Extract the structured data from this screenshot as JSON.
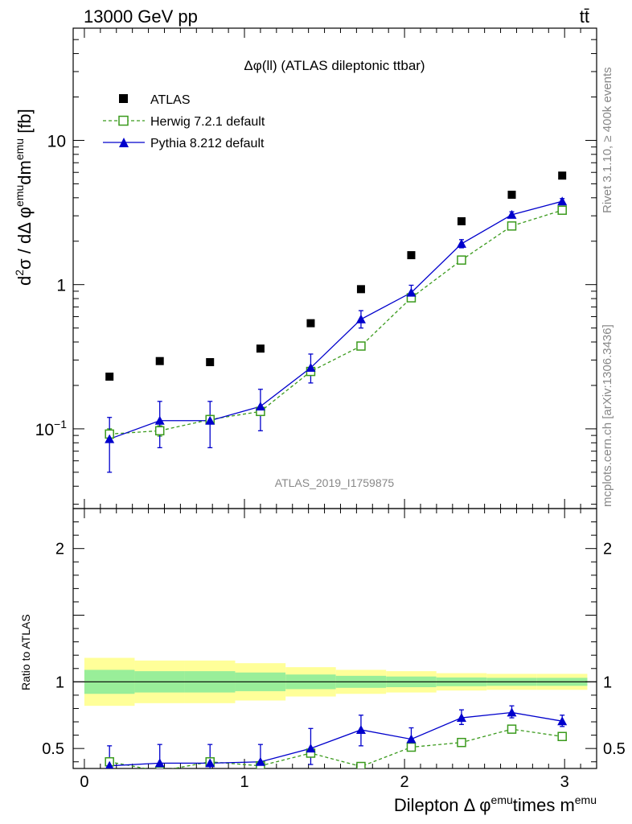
{
  "header": {
    "energy_label": "13000 GeV pp",
    "process_label": "tt̄"
  },
  "side_notes": {
    "rivet": "Rivet 3.1.10, ≥ 400k events",
    "mcplots": "mcplots.cern.ch [arXiv:1306.3436]"
  },
  "chart_data": [
    {
      "type": "scatter",
      "panel": "main",
      "title": "Δφ(ll) (ATLAS dileptonic ttbar)",
      "ylabel_parts": {
        "d": "d",
        "sq": "2",
        "sigma": "σ / dΔ φ",
        "emu1": "emu",
        "dm": "dm",
        "emu2": "emu",
        "unit": " [fb]"
      },
      "xlabel_parts": {
        "main": "Dilepton Δ φ",
        "emu1": "emu",
        "times": "times m",
        "emu2": "emu"
      },
      "yscale": "log",
      "ylim": [
        0.028,
        60
      ],
      "xlim": [
        -0.07,
        3.2
      ],
      "watermark": "ATLAS_2019_I1759875",
      "x_ticks": [
        0,
        1,
        2,
        3
      ],
      "y_ticks": [
        {
          "value": 0.1,
          "base": "10",
          "exp": "−1"
        },
        {
          "value": 1,
          "base": "1",
          "exp": ""
        },
        {
          "value": 10,
          "base": "10",
          "exp": ""
        }
      ],
      "legend": [
        {
          "name": "ATLAS",
          "marker": "square-filled",
          "color": "#000000"
        },
        {
          "name": "Herwig 7.2.1 default",
          "marker": "square-open",
          "color": "#3a9a1c"
        },
        {
          "name": "Pythia 8.212 default",
          "marker": "triangle",
          "color": "#0000cc"
        }
      ],
      "x": [
        0.157,
        0.471,
        0.785,
        1.1,
        1.414,
        1.728,
        2.042,
        2.356,
        2.67,
        2.985
      ],
      "series": [
        {
          "name": "ATLAS",
          "values": [
            0.23,
            0.295,
            0.29,
            0.36,
            0.54,
            0.93,
            1.6,
            2.75,
            4.2,
            5.7
          ]
        },
        {
          "name": "Herwig 7.2.1 default",
          "values": [
            0.092,
            0.097,
            0.116,
            0.132,
            0.25,
            0.375,
            0.81,
            1.48,
            2.55,
            3.28
          ],
          "err_low": [
            0.083,
            0.089,
            0.108,
            0.125,
            0.24,
            0.36,
            0.79,
            1.44,
            2.49,
            3.2
          ],
          "err_high": [
            0.1,
            0.105,
            0.124,
            0.139,
            0.26,
            0.39,
            0.83,
            1.52,
            2.61,
            3.36
          ]
        },
        {
          "name": "Pythia 8.212 default",
          "values": [
            0.085,
            0.114,
            0.114,
            0.143,
            0.265,
            0.575,
            0.88,
            1.92,
            3.05,
            3.78
          ],
          "err_low": [
            0.05,
            0.074,
            0.074,
            0.097,
            0.208,
            0.5,
            0.8,
            1.8,
            2.9,
            3.62
          ],
          "err_high": [
            0.12,
            0.155,
            0.155,
            0.188,
            0.33,
            0.66,
            0.99,
            2.05,
            3.2,
            3.95
          ]
        }
      ]
    },
    {
      "type": "scatter",
      "panel": "ratio",
      "ylabel": "Ratio to ATLAS",
      "ylim": [
        0.35,
        2.3
      ],
      "y_ticks": [
        {
          "value": 0.5,
          "label": "0.5"
        },
        {
          "value": 1,
          "label": "1"
        },
        {
          "value": 2,
          "label": "2"
        }
      ],
      "bin_edges": [
        0,
        0.314,
        0.628,
        0.942,
        1.257,
        1.571,
        1.885,
        2.199,
        2.513,
        2.827,
        3.142
      ],
      "band_yellow": [
        [
          0.82,
          1.18
        ],
        [
          0.84,
          1.16
        ],
        [
          0.84,
          1.16
        ],
        [
          0.86,
          1.14
        ],
        [
          0.89,
          1.11
        ],
        [
          0.91,
          1.09
        ],
        [
          0.92,
          1.08
        ],
        [
          0.935,
          1.065
        ],
        [
          0.94,
          1.06
        ],
        [
          0.94,
          1.06
        ]
      ],
      "band_green": [
        [
          0.91,
          1.09
        ],
        [
          0.92,
          1.08
        ],
        [
          0.92,
          1.08
        ],
        [
          0.93,
          1.07
        ],
        [
          0.945,
          1.055
        ],
        [
          0.955,
          1.045
        ],
        [
          0.96,
          1.04
        ],
        [
          0.967,
          1.033
        ],
        [
          0.97,
          1.03
        ],
        [
          0.97,
          1.03
        ]
      ],
      "x": [
        0.157,
        0.471,
        0.785,
        1.1,
        1.414,
        1.728,
        2.042,
        2.356,
        2.67,
        2.985
      ],
      "series": [
        {
          "name": "Herwig 7.2.1 default",
          "values": [
            0.4,
            0.33,
            0.4,
            0.37,
            0.465,
            0.365,
            0.51,
            0.545,
            0.645,
            0.59
          ],
          "err_low": [
            0.39,
            0.32,
            0.39,
            0.36,
            0.45,
            0.355,
            0.49,
            0.53,
            0.63,
            0.575
          ],
          "err_high": [
            0.41,
            0.34,
            0.41,
            0.38,
            0.48,
            0.375,
            0.53,
            0.56,
            0.66,
            0.605
          ]
        },
        {
          "name": "Pythia 8.212 default",
          "values": [
            0.37,
            0.39,
            0.39,
            0.4,
            0.5,
            0.64,
            0.57,
            0.73,
            0.77,
            0.705
          ],
          "err_low": [
            0.22,
            0.25,
            0.25,
            0.27,
            0.38,
            0.52,
            0.49,
            0.68,
            0.73,
            0.665
          ],
          "err_high": [
            0.52,
            0.53,
            0.53,
            0.53,
            0.65,
            0.75,
            0.655,
            0.79,
            0.82,
            0.75
          ]
        }
      ]
    }
  ]
}
